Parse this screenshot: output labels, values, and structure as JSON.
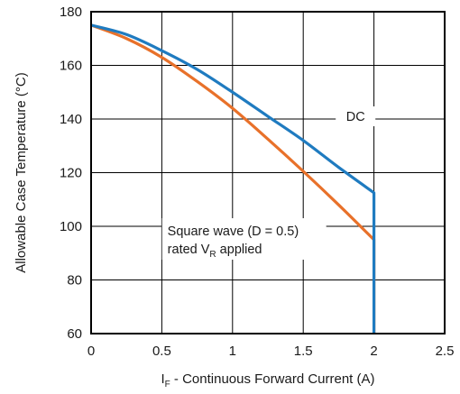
{
  "chart_data": {
    "type": "line",
    "title": "",
    "xlabel": {
      "main": "I",
      "sub": "F",
      "rest": " - Continuous Forward Current (A)"
    },
    "ylabel": "Allowable Case Temperature (°C)",
    "xlim": [
      0,
      2.5
    ],
    "ylim": [
      60,
      180
    ],
    "x_ticks": [
      "0",
      "0.5",
      "1",
      "1.5",
      "2",
      "2.5"
    ],
    "y_ticks": [
      "60",
      "80",
      "100",
      "120",
      "140",
      "160",
      "180"
    ],
    "grid": true,
    "series": [
      {
        "name": "DC",
        "color": "#1f7bc0",
        "points": [
          [
            0,
            175
          ],
          [
            0.25,
            171.5
          ],
          [
            0.5,
            165.5
          ],
          [
            0.75,
            158.5
          ],
          [
            1,
            150
          ],
          [
            1.25,
            141
          ],
          [
            1.5,
            132
          ],
          [
            1.75,
            122
          ],
          [
            2,
            112.5
          ],
          [
            2,
            60
          ]
        ]
      },
      {
        "name": "Square wave (D = 0.5) rated VR applied",
        "color": "#e8712a",
        "points": [
          [
            0,
            175
          ],
          [
            0.25,
            170
          ],
          [
            0.5,
            163
          ],
          [
            0.75,
            154
          ],
          [
            1,
            144
          ],
          [
            1.25,
            132.5
          ],
          [
            1.5,
            120.5
          ],
          [
            1.75,
            108
          ],
          [
            2,
            95
          ],
          [
            2,
            60
          ]
        ]
      }
    ],
    "annotations": {
      "dc": {
        "text": "DC",
        "x": 1.87,
        "y": 141
      },
      "square": {
        "line1": "Square wave (D = 0.5)",
        "line2_main": "rated V",
        "line2_sub": "R",
        "line2_rest": " applied",
        "x": 0.54,
        "y": 101
      }
    }
  }
}
